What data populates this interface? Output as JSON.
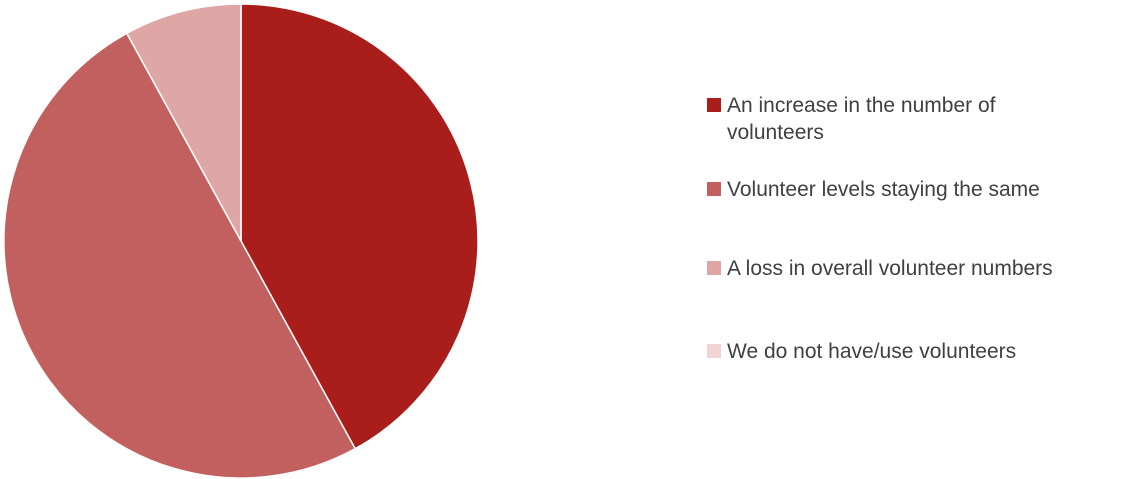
{
  "chart_data": {
    "type": "pie",
    "title": "",
    "legend_position": "right",
    "series": [
      {
        "slices": [
          {
            "label": "An increase in the number of volunteers",
            "value": 42,
            "color": "#a91d1b"
          },
          {
            "label": "Volunteer levels staying the same",
            "value": 50,
            "color": "#c2605f"
          },
          {
            "label": "A loss in overall volunteer numbers",
            "value": 8,
            "color": "#dea6a5"
          },
          {
            "label": "We do not have/use volunteers",
            "value": 0,
            "color": "#f0d3d2"
          }
        ]
      }
    ]
  }
}
